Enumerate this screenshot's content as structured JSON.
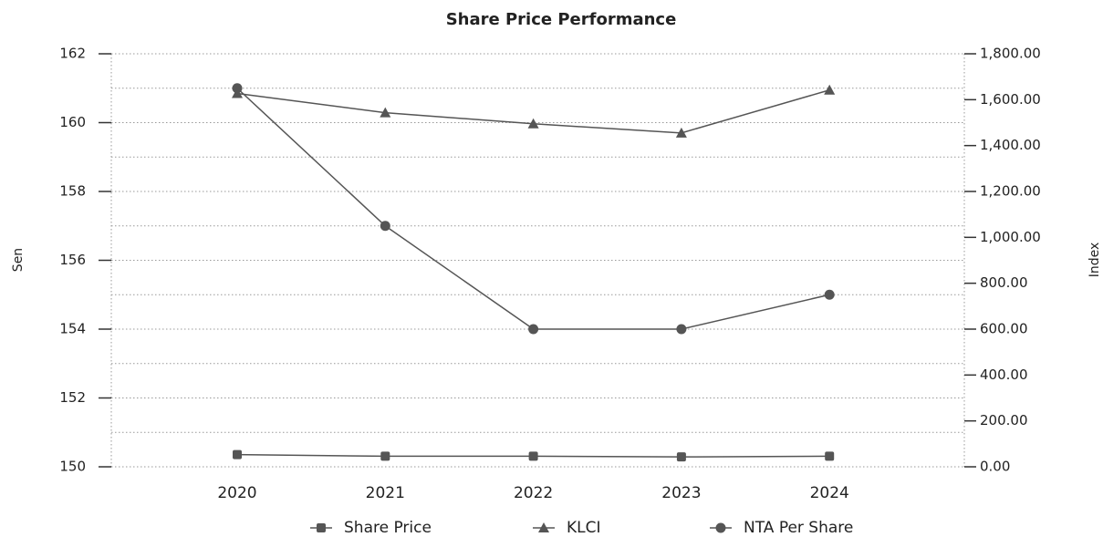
{
  "chart_data": {
    "type": "line",
    "title": "Share Price Performance",
    "ylabel": "Sen",
    "y2label": "Index",
    "categories": [
      "2020",
      "2021",
      "2022",
      "2023",
      "2024"
    ],
    "series": [
      {
        "name": "Share Price",
        "color": "#555555",
        "marker": "square",
        "axis": "y2",
        "values": [
          53,
          46,
          46,
          43,
          46
        ]
      },
      {
        "name": "KLCI",
        "color": "#555555",
        "marker": "triangle",
        "axis": "y2",
        "values": [
          1627,
          1543,
          1495,
          1455,
          1642
        ]
      },
      {
        "name": "NTA Per Share",
        "color": "#555555",
        "marker": "circle",
        "values": [
          161,
          157,
          154,
          154,
          155
        ]
      }
    ],
    "ylim": [
      150,
      162
    ],
    "yticks": [
      150,
      152,
      154,
      156,
      158,
      160,
      162
    ],
    "yminorgrid": [
      151,
      153,
      155,
      157,
      159,
      161
    ],
    "y2lim": [
      0,
      1800
    ],
    "y2ticks": [
      {
        "value": 0,
        "label": "0.00"
      },
      {
        "value": 200,
        "label": "200.00"
      },
      {
        "value": 400,
        "label": "400.00"
      },
      {
        "value": 600,
        "label": "600.00"
      },
      {
        "value": 800,
        "label": "800.00"
      },
      {
        "value": 1000,
        "label": "1,000.00"
      },
      {
        "value": 1200,
        "label": "1,200.00"
      },
      {
        "value": 1400,
        "label": "1,400.00"
      },
      {
        "value": 1600,
        "label": "1,600.00"
      },
      {
        "value": 1800,
        "label": "1,800.00"
      }
    ],
    "grid": true,
    "legend": "bottom"
  }
}
